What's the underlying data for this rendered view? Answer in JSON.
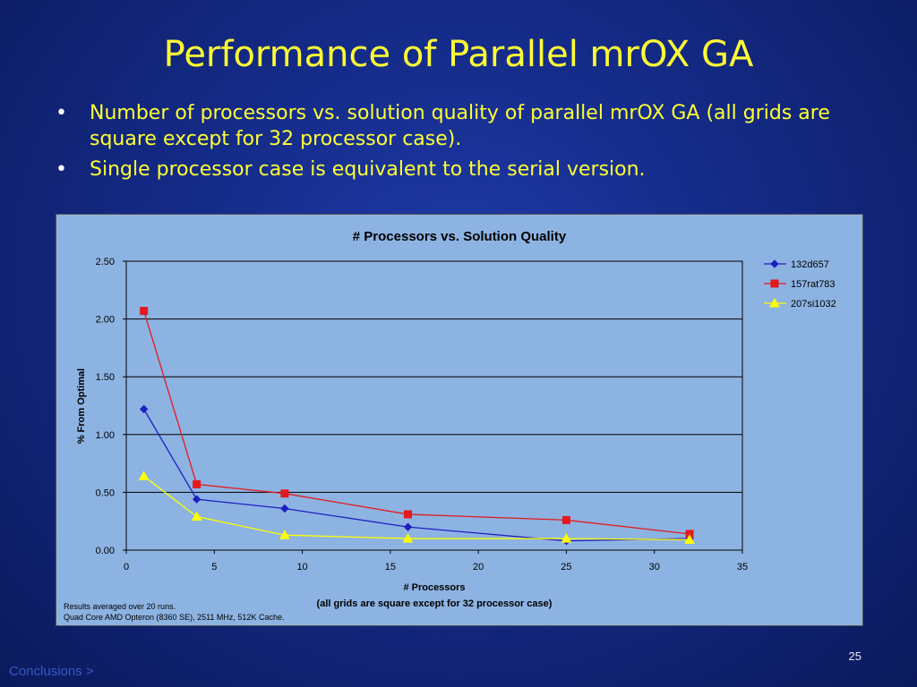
{
  "slide": {
    "title": "Performance of Parallel mrOX GA",
    "bullets": [
      "Number of processors vs. solution quality of parallel mrOX GA (all grids are square except for 32 processor case).",
      "Single processor case is equivalent to the serial version."
    ],
    "page_number": "25",
    "nav_link": "Conclusions >"
  },
  "chart_data": {
    "type": "line",
    "title": "# Processors vs. Solution Quality",
    "xlabel": "# Processors",
    "xlabel_sub": "(all grids are square except for 32 processor case)",
    "ylabel": "% From Optimal",
    "xlim": [
      0,
      35
    ],
    "ylim": [
      0,
      2.5
    ],
    "x_ticks": [
      "0",
      "5",
      "10",
      "15",
      "20",
      "25",
      "30",
      "35"
    ],
    "y_ticks": [
      "0.00",
      "0.50",
      "1.00",
      "1.50",
      "2.00",
      "2.50"
    ],
    "grid": "horizontal",
    "legend": "right",
    "x": [
      1,
      4,
      9,
      16,
      25,
      32
    ],
    "series": [
      {
        "name": "132d657",
        "values": [
          1.22,
          0.44,
          0.36,
          0.2,
          0.08,
          0.1
        ],
        "color": "#1f1fbf",
        "marker": "diamond"
      },
      {
        "name": "157rat783",
        "values": [
          2.07,
          0.57,
          0.49,
          0.31,
          0.26,
          0.14
        ],
        "color": "#e31a1c",
        "marker": "square"
      },
      {
        "name": "207si1032",
        "values": [
          0.64,
          0.29,
          0.13,
          0.1,
          0.1,
          0.09
        ],
        "color": "#ffff00",
        "marker": "triangle"
      }
    ],
    "footnotes": [
      "Results averaged over 20 runs.",
      "Quad Core AMD Opteron (8360 SE), 2511 MHz, 512K Cache."
    ]
  }
}
